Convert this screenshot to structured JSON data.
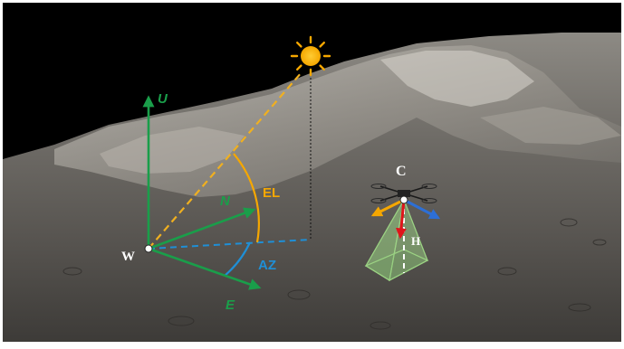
{
  "labels": {
    "up": "U",
    "north": "N",
    "east": "E",
    "world_origin": "W",
    "elevation": "EL",
    "azimuth": "AZ",
    "camera": "C",
    "height": "H"
  },
  "colors": {
    "frame": "#000000",
    "sky": "#000000",
    "axis_green": "#1a9e4a",
    "sun_orange": "#f5a700",
    "sun_ray": "#f0b020",
    "azimuth_blue": "#1f8fd6",
    "camera_red": "#e0151b",
    "camera_blue": "#2d6fd6",
    "frustum_green": "#8fc87a",
    "label_white": "#ffffff"
  },
  "icons": [
    "sun-icon",
    "drone-icon"
  ]
}
